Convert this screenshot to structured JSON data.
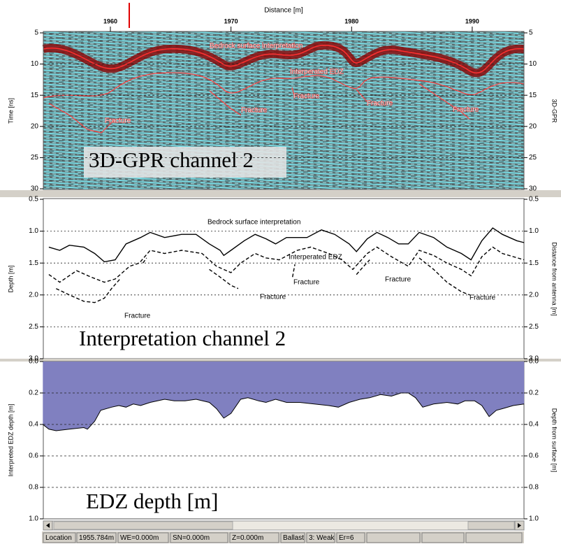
{
  "chart_data": [
    {
      "type": "image",
      "x_label": "Distance [m]",
      "y_label": "Time [ns]",
      "y2_label": "3D-GPR",
      "xlim": [
        1954.44,
        1994.29
      ],
      "xticks": [
        1960,
        1970,
        1980,
        1990
      ],
      "ylim": [
        5,
        30
      ],
      "yticks": [
        5,
        10,
        15,
        20,
        25,
        30
      ],
      "y_inverted": true,
      "grid": true,
      "annotations": [
        "Bedrock surface interpretation",
        "Interperated EDZ",
        "Fracture",
        "Fracture",
        "Fracture",
        "Fracture",
        "Fracture"
      ],
      "panel_label": "3D-GPR channel 2"
    },
    {
      "type": "line",
      "y_label": "Depth [m]",
      "y2_label": "Distance from antenna [m]",
      "xlim": [
        1954.44,
        1994.29
      ],
      "ylim": [
        0.5,
        3.0
      ],
      "yticks": [
        0.5,
        {
          "value": 1.0,
          "label": "1.0"
        },
        1.5,
        {
          "value": 2.0,
          "label": "2.0"
        },
        2.5,
        {
          "value": 3.0,
          "label": "3.0"
        }
      ],
      "y_inverted": true,
      "grid": true,
      "series": [
        {
          "color": "#000000",
          "line_style": "solid",
          "x": [
            1954.9,
            1955.8,
            1956.6,
            1957.8,
            1958.7,
            1959.5,
            1960.4,
            1961.3,
            1962.5,
            1963.3,
            1964.5,
            1965.9,
            1967.1,
            1968.2,
            1969.1,
            1969.4,
            1970.0,
            1971.1,
            1972.0,
            1972.9,
            1973.7,
            1974.6,
            1975.2,
            1976.3,
            1977.5,
            1978.6,
            1979.8,
            1980.4,
            1981.3,
            1982.1,
            1983.0,
            1983.9,
            1984.7,
            1985.6,
            1986.8,
            1987.9,
            1989.1,
            1989.9,
            1990.8,
            1991.7,
            1992.5,
            1993.7,
            1994.3
          ],
          "values": [
            1.25,
            1.3,
            1.22,
            1.25,
            1.35,
            1.48,
            1.45,
            1.2,
            1.1,
            1.02,
            1.1,
            1.05,
            1.05,
            1.2,
            1.3,
            1.38,
            1.3,
            1.15,
            1.05,
            1.12,
            1.2,
            1.1,
            1.1,
            1.1,
            0.98,
            1.05,
            1.2,
            1.32,
            1.12,
            1.02,
            1.1,
            1.2,
            1.2,
            1.02,
            1.1,
            1.25,
            1.35,
            1.45,
            1.15,
            0.95,
            1.05,
            1.15,
            1.18
          ]
        },
        {
          "color": "#000000",
          "line_style": "dashed",
          "x": [
            1954.9,
            1955.8,
            1957.2,
            1958.4,
            1959.5,
            1960.4,
            1961.6,
            1962.4,
            1963.3,
            1964.5,
            1965.9,
            1967.6,
            1968.8,
            1970.0,
            1970.8,
            1972.0,
            1972.9,
            1974.0,
            1975.5,
            1976.6,
            1978.1,
            1979.2,
            1980.1,
            1981.3,
            1982.1,
            1983.3,
            1984.7,
            1985.6,
            1986.8,
            1987.9,
            1989.1,
            1989.9,
            1990.8,
            1991.7,
            1992.5,
            1994.3
          ],
          "values": [
            1.68,
            1.8,
            1.62,
            1.72,
            1.8,
            1.75,
            1.55,
            1.5,
            1.3,
            1.35,
            1.3,
            1.35,
            1.55,
            1.65,
            1.5,
            1.35,
            1.42,
            1.45,
            1.3,
            1.25,
            1.35,
            1.45,
            1.6,
            1.35,
            1.25,
            1.4,
            1.55,
            1.3,
            1.38,
            1.5,
            1.6,
            1.7,
            1.4,
            1.25,
            1.35,
            1.45
          ]
        },
        {
          "color": "#000000",
          "line_style": "dashed",
          "x": [
            1955.5,
            1956.6,
            1957.8,
            1958.7,
            1959.5,
            1960.1,
            1960.8
          ],
          "values": [
            1.9,
            2.0,
            2.1,
            2.12,
            2.05,
            1.9,
            1.75
          ]
        },
        {
          "color": "#000000",
          "line_style": "dashed",
          "x": [
            1962.7,
            1963.0
          ],
          "values": [
            1.5,
            1.42
          ]
        },
        {
          "color": "#000000",
          "line_style": "dashed",
          "x": [
            1968.2,
            1969.1,
            1970.0,
            1970.6
          ],
          "values": [
            1.6,
            1.72,
            1.85,
            1.9
          ]
        },
        {
          "color": "#000000",
          "line_style": "dashed",
          "x": [
            1975.1,
            1975.3
          ],
          "values": [
            1.72,
            1.52
          ]
        },
        {
          "color": "#000000",
          "line_style": "dashed",
          "x": [
            1980.4,
            1981.0,
            1981.5
          ],
          "values": [
            1.68,
            1.55,
            1.45
          ]
        },
        {
          "color": "#000000",
          "line_style": "dashed",
          "x": [
            1985.6,
            1986.8,
            1987.9,
            1989.1,
            1989.8
          ],
          "values": [
            1.42,
            1.6,
            1.8,
            1.95,
            2.0
          ]
        }
      ],
      "annotations": [
        "Bedrock surface interpretation",
        "Interperated EDZ",
        "Fracture",
        "Fracture",
        "Fracture",
        "Fracture",
        "Fracture"
      ],
      "panel_label": "Interpretation channel 2"
    },
    {
      "type": "area",
      "y_label": "Interpreted EDZ depth [m]",
      "y2_label": "Depth from surface [m]",
      "xlim": [
        1954.44,
        1994.29
      ],
      "ylim": [
        0,
        1
      ],
      "yticks": [
        {
          "value": 0,
          "label": "0.0"
        },
        0.2,
        0.4,
        0.6,
        0.8,
        {
          "value": 1,
          "label": "1.0"
        }
      ],
      "y_inverted": true,
      "grid": true,
      "color": "#8080c0",
      "line_color": "#000000",
      "x": [
        1954.4,
        1954.9,
        1955.5,
        1956.6,
        1957.8,
        1958.1,
        1958.7,
        1959.2,
        1960.1,
        1960.7,
        1961.3,
        1961.9,
        1962.5,
        1963.3,
        1964.5,
        1965.3,
        1966.2,
        1967.1,
        1968.2,
        1968.8,
        1969.4,
        1970.0,
        1970.8,
        1971.4,
        1972.3,
        1972.9,
        1973.7,
        1974.6,
        1975.7,
        1976.9,
        1978.1,
        1978.9,
        1979.8,
        1980.7,
        1981.5,
        1982.4,
        1983.3,
        1984.1,
        1984.7,
        1985.3,
        1985.9,
        1986.8,
        1987.9,
        1988.8,
        1989.4,
        1990.2,
        1990.8,
        1991.4,
        1992.0,
        1992.5,
        1993.4,
        1994.3
      ],
      "values": [
        0.4,
        0.43,
        0.44,
        0.43,
        0.42,
        0.43,
        0.38,
        0.31,
        0.29,
        0.28,
        0.29,
        0.27,
        0.28,
        0.26,
        0.24,
        0.25,
        0.25,
        0.24,
        0.26,
        0.3,
        0.36,
        0.33,
        0.24,
        0.23,
        0.25,
        0.26,
        0.24,
        0.26,
        0.26,
        0.27,
        0.28,
        0.29,
        0.26,
        0.24,
        0.23,
        0.21,
        0.22,
        0.2,
        0.2,
        0.23,
        0.29,
        0.27,
        0.26,
        0.27,
        0.25,
        0.25,
        0.28,
        0.35,
        0.31,
        0.3,
        0.28,
        0.27
      ],
      "panel_label": "EDZ depth [m]"
    }
  ],
  "status_bar": [
    "Location",
    "1955.784m",
    "WE=0.000m",
    "SN=0.000m",
    "Z=0.000m",
    "Ballast",
    "3: Weak",
    "Er=6"
  ]
}
